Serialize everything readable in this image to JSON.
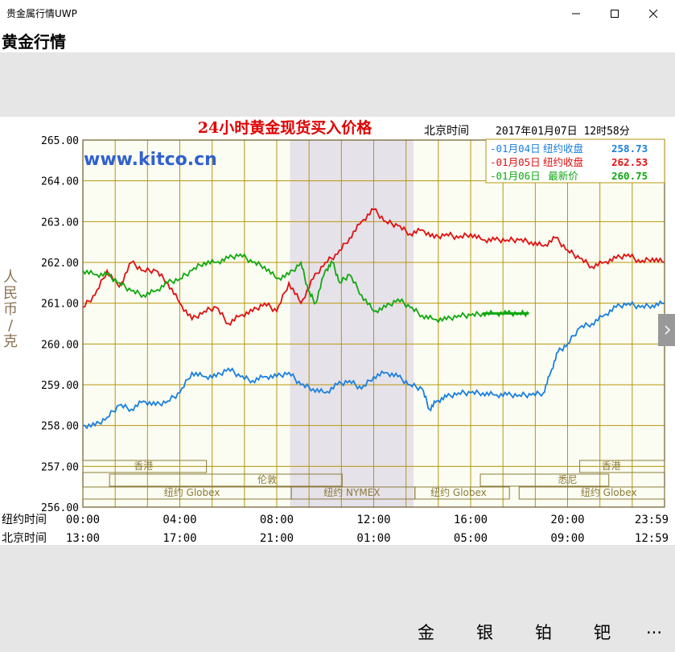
{
  "window": {
    "title": "贵金属行情UWP"
  },
  "header": {
    "title": "黄金行情"
  },
  "chart_meta": {
    "watermark": "www.kitco.cn",
    "beijing_time_label": "北京时间",
    "timestamp": "2017年01月07日 12时58分",
    "sessions": {
      "hongkong": "香港",
      "london": "伦敦",
      "ny_globex": "纽约 Globex",
      "ny_nymex": "纽约 NYMEX",
      "sydney": "悉尼"
    },
    "row_labels": {
      "ny_time": "纽约时间",
      "bj_time": "北京时间"
    },
    "ny_ticks": [
      "00:00",
      "04:00",
      "08:00",
      "12:00",
      "16:00",
      "20:00",
      "23:59"
    ],
    "bj_ticks": [
      "13:00",
      "17:00",
      "21:00",
      "01:00",
      "05:00",
      "09:00",
      "12:59"
    ],
    "colors": {
      "series_blue": "#1a7fe0",
      "series_red": "#e01010",
      "series_green": "#10a810",
      "grid": "#b8960c",
      "plot_bg": "#fbfdf2",
      "shade": "#e6e2ea",
      "title": "#e00000",
      "axis_text": "#8b7355",
      "watermark": "#3060d0"
    }
  },
  "chart_data": {
    "type": "line",
    "title": "24小时黄金现货买入价格",
    "ylabel": "人民币/克",
    "ylim": [
      256.0,
      265.0
    ],
    "yticks": [
      "265.00",
      "264.00",
      "263.00",
      "262.00",
      "261.00",
      "260.00",
      "259.00",
      "258.00",
      "257.00",
      "256.00"
    ],
    "x_unit": "hours (New York time)",
    "xlim": [
      0,
      24
    ],
    "grid": true,
    "legend_position": "top-right",
    "legend": [
      {
        "date": "-01月04日",
        "label": "纽约收盘",
        "value": "258.73"
      },
      {
        "date": "-01月05日",
        "label": "纽约收盘",
        "value": "262.53"
      },
      {
        "date": "-01月06日",
        "label": "最新价",
        "value": "260.75"
      }
    ],
    "series": [
      {
        "name": "01月04日",
        "color": "#1a7fe0",
        "x": [
          0,
          0.5,
          1.0,
          1.5,
          2.0,
          2.5,
          3.0,
          3.5,
          4.0,
          4.5,
          5.0,
          5.5,
          6.0,
          6.5,
          7.0,
          7.5,
          8.0,
          8.5,
          9.0,
          9.5,
          10.0,
          10.5,
          11.0,
          11.5,
          12.0,
          12.5,
          13.0,
          13.5,
          14.0,
          14.3,
          14.6,
          15.0,
          15.5,
          16.0,
          16.5,
          17.0,
          17.5,
          18.0,
          18.5,
          19.0,
          19.3,
          19.6,
          20.0,
          20.5,
          21.0,
          21.5,
          22.0,
          22.5,
          23.0,
          23.5,
          23.98
        ],
        "values": [
          258.0,
          258.0,
          258.2,
          258.5,
          258.4,
          258.6,
          258.5,
          258.6,
          258.8,
          259.3,
          259.2,
          259.2,
          259.4,
          259.2,
          259.1,
          259.2,
          259.2,
          259.3,
          259.0,
          258.9,
          258.8,
          259.0,
          259.1,
          258.9,
          259.2,
          259.3,
          259.2,
          259.0,
          258.9,
          258.4,
          258.6,
          258.7,
          258.8,
          258.8,
          258.8,
          258.75,
          258.75,
          258.75,
          258.75,
          258.8,
          259.3,
          259.8,
          260.0,
          260.4,
          260.5,
          260.7,
          260.9,
          261.0,
          260.9,
          260.95,
          261.0
        ]
      },
      {
        "name": "01月05日",
        "color": "#e01010",
        "x": [
          0,
          0.5,
          1.0,
          1.5,
          2.0,
          2.5,
          3.0,
          3.5,
          4.0,
          4.5,
          5.0,
          5.5,
          6.0,
          6.5,
          7.0,
          7.5,
          8.0,
          8.5,
          9.0,
          9.5,
          10.0,
          10.5,
          11.0,
          11.5,
          12.0,
          12.5,
          13.0,
          13.5,
          14.0,
          14.5,
          15.0,
          15.5,
          16.0,
          16.5,
          17.0,
          17.5,
          18.0,
          18.5,
          19.0,
          19.5,
          20.0,
          20.5,
          21.0,
          21.5,
          22.0,
          22.5,
          23.0,
          23.5,
          23.98
        ],
        "values": [
          260.9,
          261.2,
          261.8,
          261.4,
          262.0,
          261.8,
          261.8,
          261.5,
          261.0,
          260.6,
          260.8,
          260.9,
          260.5,
          260.7,
          260.8,
          261.0,
          260.8,
          261.5,
          261.0,
          261.6,
          262.0,
          262.2,
          262.6,
          263.0,
          263.3,
          263.0,
          262.9,
          262.7,
          262.8,
          262.6,
          262.7,
          262.6,
          262.7,
          262.55,
          262.55,
          262.55,
          262.55,
          262.5,
          262.4,
          262.6,
          262.3,
          262.1,
          261.9,
          262.0,
          262.1,
          262.2,
          262.0,
          262.1,
          262.0
        ]
      },
      {
        "name": "01月06日",
        "color": "#10a810",
        "x": [
          0,
          0.5,
          1.0,
          1.5,
          2.0,
          2.5,
          3.0,
          3.5,
          4.0,
          4.5,
          5.0,
          5.5,
          6.0,
          6.5,
          7.0,
          7.5,
          8.0,
          8.5,
          9.0,
          9.3,
          9.6,
          10.0,
          10.3,
          10.6,
          11.0,
          11.5,
          12.0,
          12.5,
          13.0,
          13.5,
          14.0,
          14.5,
          15.0,
          15.5,
          16.0,
          16.5,
          17.0,
          17.5,
          18.0,
          18.4
        ],
        "values": [
          261.8,
          261.7,
          261.7,
          261.5,
          261.3,
          261.2,
          261.3,
          261.5,
          261.6,
          261.8,
          262.0,
          262.0,
          262.1,
          262.2,
          262.0,
          261.9,
          261.6,
          261.7,
          262.0,
          261.3,
          261.0,
          261.8,
          262.0,
          261.5,
          261.7,
          261.2,
          260.8,
          260.9,
          261.1,
          260.9,
          260.7,
          260.6,
          260.6,
          260.7,
          260.7,
          260.75,
          260.75,
          260.75,
          260.75,
          260.75
        ]
      }
    ]
  },
  "bottom_nav": {
    "gold": "金",
    "silver": "银",
    "platinum": "铂",
    "palladium": "钯",
    "more": "..."
  }
}
